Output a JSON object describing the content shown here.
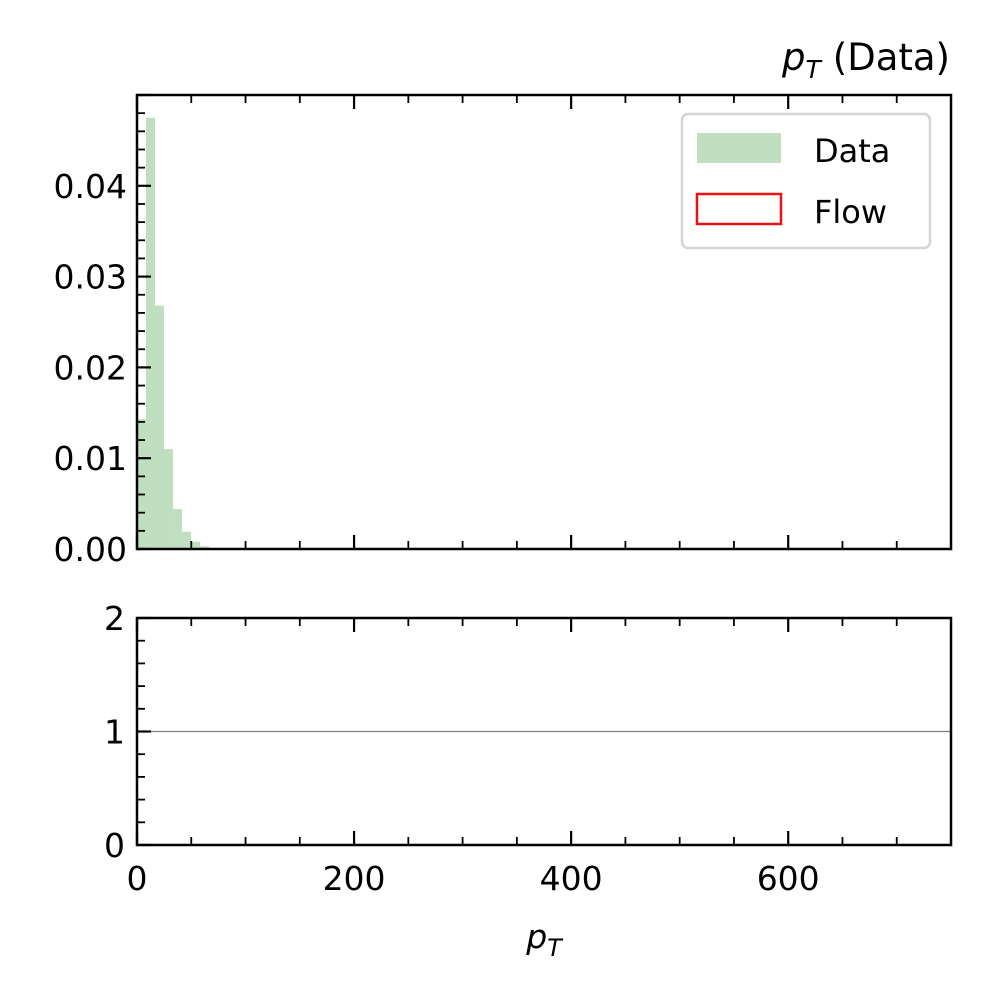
{
  "chart_data": [
    {
      "panel": "main",
      "type": "bar",
      "title": "(Data)",
      "title_symbol": "p",
      "title_subscript": "T",
      "xlim": [
        0,
        750
      ],
      "ylim": [
        0,
        0.05
      ],
      "yticks": [
        0.0,
        0.01,
        0.02,
        0.03,
        0.04
      ],
      "ytick_labels": [
        "0.00",
        "0.01",
        "0.02",
        "0.03",
        "0.04"
      ],
      "bin_width": 8.3,
      "bins": [
        {
          "x0": 0.0,
          "value": 0.0143
        },
        {
          "x0": 8.3,
          "value": 0.0475
        },
        {
          "x0": 16.6,
          "value": 0.0268
        },
        {
          "x0": 24.9,
          "value": 0.011
        },
        {
          "x0": 33.2,
          "value": 0.0044
        },
        {
          "x0": 41.5,
          "value": 0.0019
        },
        {
          "x0": 49.8,
          "value": 0.0008
        },
        {
          "x0": 58.1,
          "value": 0.0003
        },
        {
          "x0": 66.4,
          "value": 0.0001
        }
      ],
      "series": [
        {
          "name": "Data",
          "style": "filled",
          "color": "#c0dec0"
        },
        {
          "name": "Flow",
          "style": "outline",
          "color": "#ee1111"
        }
      ],
      "legend_position": "top-right",
      "grid": false
    },
    {
      "panel": "ratio",
      "type": "line",
      "xlim": [
        0,
        750
      ],
      "ylim": [
        0,
        2
      ],
      "xticks": [
        0,
        200,
        400,
        600
      ],
      "xtick_labels": [
        "0",
        "200",
        "400",
        "600"
      ],
      "yticks": [
        0,
        1,
        2
      ],
      "ytick_labels": [
        "0",
        "1",
        "2"
      ],
      "reference_line": 1,
      "reference_color": "#808080",
      "xlabel_symbol": "p",
      "xlabel_subscript": "T",
      "grid": false
    }
  ]
}
